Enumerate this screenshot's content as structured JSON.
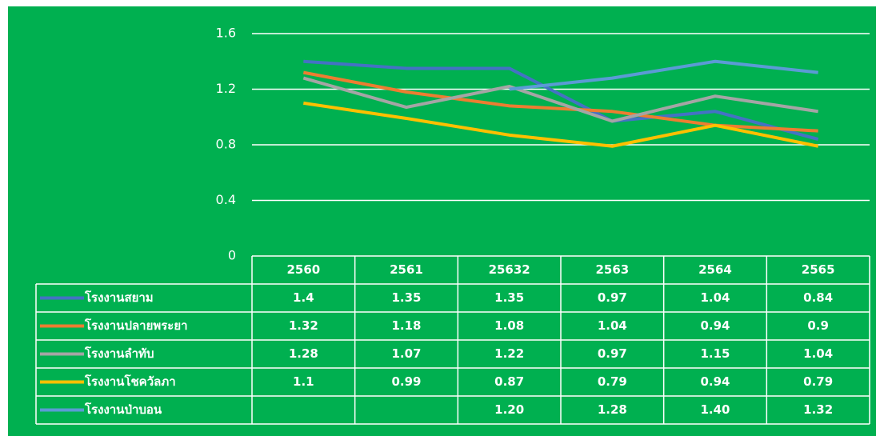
{
  "chart_data": {
    "type": "line",
    "categories": [
      "2560",
      "2561",
      "25632",
      "2563",
      "2564",
      "2565"
    ],
    "series": [
      {
        "name": "โรงงานสยาม",
        "color": "#4472c4",
        "values": [
          1.4,
          1.35,
          1.35,
          0.97,
          1.04,
          0.84
        ]
      },
      {
        "name": "โรงงานปลายพระยา",
        "color": "#ed7d31",
        "values": [
          1.32,
          1.18,
          1.08,
          1.04,
          0.94,
          0.9
        ]
      },
      {
        "name": "โรงงานลำทับ",
        "color": "#a5a5a5",
        "values": [
          1.28,
          1.07,
          1.22,
          0.97,
          1.15,
          1.04
        ]
      },
      {
        "name": "โรงงานโชควัลภา",
        "color": "#ffc000",
        "values": [
          1.1,
          0.99,
          0.87,
          0.79,
          0.94,
          0.79
        ]
      },
      {
        "name": "โรงงานป่าบอน",
        "color": "#5b9bd5",
        "values": [
          null,
          null,
          1.2,
          1.28,
          1.4,
          1.32
        ],
        "value_labels": [
          null,
          null,
          "1.20",
          "1.28",
          "1.40",
          "1.32"
        ]
      }
    ],
    "ylim": [
      0,
      1.6
    ],
    "yticks": [
      0,
      0.4,
      0.8,
      1.2,
      1.6
    ],
    "grid": true,
    "data_table": true
  }
}
